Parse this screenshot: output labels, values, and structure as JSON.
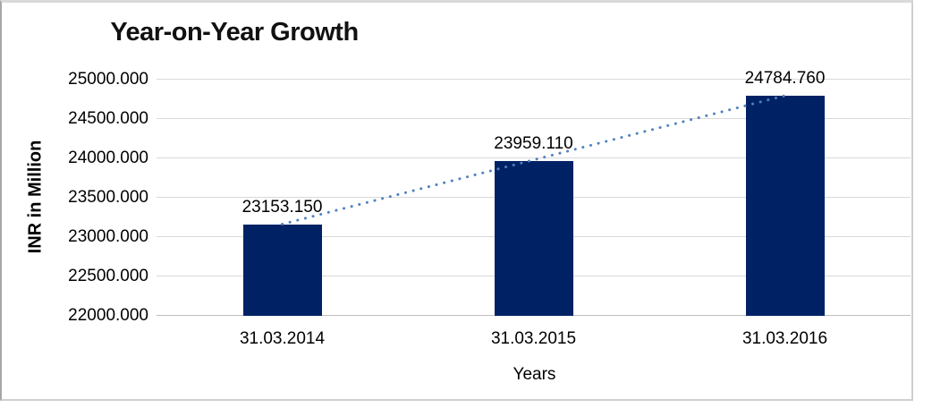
{
  "chart_data": {
    "type": "bar",
    "title": "Year-on-Year Growth",
    "xlabel": "Years",
    "ylabel": "INR in Million",
    "categories": [
      "31.03.2014",
      "31.03.2015",
      "31.03.2016"
    ],
    "values": [
      23153.15,
      23959.11,
      24784.76
    ],
    "data_labels": [
      "23153.150",
      "23959.110",
      "24784.760"
    ],
    "y_ticks": [
      "25000.000",
      "24500.000",
      "24000.000",
      "23500.000",
      "23000.000",
      "22500.000",
      "22000.000"
    ],
    "ylim": [
      22000,
      25000
    ],
    "grid": "horizontal",
    "legend": "none",
    "colors": {
      "bar": "#002265",
      "trendline": "#4f81bd",
      "gridline": "#d9d9d9",
      "text": "#000000"
    },
    "trendline": {
      "type": "linear",
      "style": "dotted",
      "from_category": "31.03.2014",
      "to_category": "31.03.2016"
    }
  }
}
